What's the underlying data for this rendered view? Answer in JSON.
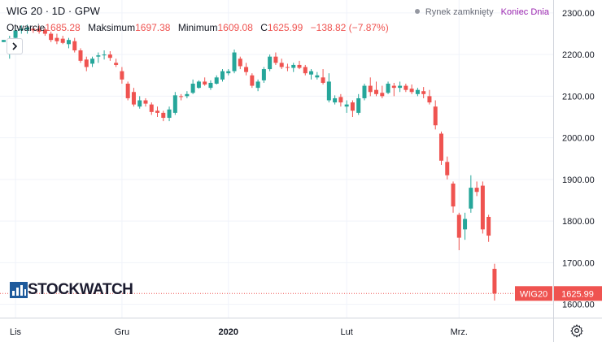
{
  "header": {
    "symbol": "WIG 20",
    "interval": "1D",
    "exchange": "GPW",
    "open_label": "Otwarcie",
    "open_value": "1685.28",
    "high_label": "Maksimum",
    "high_value": "1697.38",
    "low_label": "Minimum",
    "low_value": "1609.08",
    "close_label": "C",
    "close_value": "1625.99",
    "change_value": "−138.82 (−7.87%)"
  },
  "market_status": {
    "status_text": "Rynek zamknięty",
    "session_text": "Koniec Dnia"
  },
  "watermark": {
    "text": "STOCKWATCH"
  },
  "price_tag": {
    "symbol": "WIG20",
    "value": "1625.99"
  },
  "colors": {
    "up": "#26a69a",
    "down": "#ef5350",
    "grid": "#f0f3fa",
    "session_link": "#9c27b0"
  },
  "icons": {
    "expand": "chevron-right-icon",
    "settings": "gear-icon",
    "status": "dot-icon"
  },
  "chart_data": {
    "type": "candlestick",
    "y_axis": {
      "ticks": [
        1600,
        1700,
        1800,
        1900,
        2000,
        2100,
        2200,
        2300
      ],
      "labels": [
        "1600.00",
        "1700.00",
        "1800.00",
        "1900.00",
        "2000.00",
        "2100.00",
        "2200.00",
        "2300.00"
      ],
      "range": [
        1568,
        2331
      ],
      "grid": true
    },
    "x_axis": {
      "labels": [
        "Lis",
        "Gru",
        "2020",
        "Lut",
        "Mrz."
      ],
      "label_bar_index": [
        2,
        20,
        38,
        58,
        77
      ]
    },
    "last_price_line": 1625.99,
    "candles": [
      [
        2230,
        2235,
        2230,
        2235
      ],
      [
        2205,
        2245,
        2190,
        2238
      ],
      [
        2240,
        2265,
        2235,
        2258
      ],
      [
        2258,
        2270,
        2250,
        2262
      ],
      [
        2260,
        2272,
        2250,
        2265
      ],
      [
        2262,
        2268,
        2252,
        2258
      ],
      [
        2262,
        2270,
        2250,
        2255
      ],
      [
        2260,
        2265,
        2245,
        2250
      ],
      [
        2250,
        2255,
        2230,
        2235
      ],
      [
        2240,
        2250,
        2225,
        2232
      ],
      [
        2238,
        2245,
        2225,
        2228
      ],
      [
        2225,
        2240,
        2215,
        2235
      ],
      [
        2232,
        2240,
        2205,
        2210
      ],
      [
        2210,
        2215,
        2180,
        2185
      ],
      [
        2188,
        2195,
        2160,
        2170
      ],
      [
        2178,
        2195,
        2170,
        2190
      ],
      [
        2195,
        2205,
        2180,
        2198
      ],
      [
        2198,
        2210,
        2188,
        2200
      ],
      [
        2200,
        2208,
        2185,
        2192
      ],
      [
        2180,
        2190,
        2170,
        2175
      ],
      [
        2160,
        2170,
        2130,
        2140
      ],
      [
        2130,
        2135,
        2090,
        2095
      ],
      [
        2110,
        2120,
        2075,
        2080
      ],
      [
        2075,
        2100,
        2070,
        2090
      ],
      [
        2090,
        2095,
        2075,
        2082
      ],
      [
        2080,
        2085,
        2055,
        2062
      ],
      [
        2065,
        2075,
        2050,
        2060
      ],
      [
        2060,
        2065,
        2040,
        2048
      ],
      [
        2048,
        2075,
        2040,
        2068
      ],
      [
        2060,
        2110,
        2055,
        2102
      ],
      [
        2100,
        2105,
        2090,
        2098
      ],
      [
        2100,
        2112,
        2095,
        2105
      ],
      [
        2108,
        2140,
        2105,
        2130
      ],
      [
        2120,
        2138,
        2118,
        2135
      ],
      [
        2135,
        2145,
        2125,
        2128
      ],
      [
        2120,
        2138,
        2115,
        2132
      ],
      [
        2130,
        2150,
        2128,
        2145
      ],
      [
        2140,
        2165,
        2135,
        2160
      ],
      [
        2155,
        2165,
        2150,
        2160
      ],
      [
        2160,
        2212,
        2155,
        2205
      ],
      [
        2190,
        2195,
        2165,
        2172
      ],
      [
        2170,
        2180,
        2150,
        2158
      ],
      [
        2150,
        2155,
        2120,
        2125
      ],
      [
        2120,
        2140,
        2112,
        2135
      ],
      [
        2138,
        2170,
        2132,
        2165
      ],
      [
        2165,
        2200,
        2160,
        2195
      ],
      [
        2195,
        2205,
        2175,
        2180
      ],
      [
        2180,
        2190,
        2165,
        2170
      ],
      [
        2170,
        2178,
        2160,
        2168
      ],
      [
        2168,
        2180,
        2158,
        2175
      ],
      [
        2175,
        2185,
        2165,
        2168
      ],
      [
        2170,
        2175,
        2150,
        2155
      ],
      [
        2152,
        2165,
        2140,
        2160
      ],
      [
        2145,
        2158,
        2140,
        2150
      ],
      [
        2145,
        2165,
        2128,
        2132
      ],
      [
        2090,
        2155,
        2085,
        2135
      ],
      [
        2085,
        2102,
        2080,
        2095
      ],
      [
        2098,
        2105,
        2075,
        2085
      ],
      [
        2075,
        2090,
        2060,
        2080
      ],
      [
        2085,
        2090,
        2050,
        2065
      ],
      [
        2060,
        2105,
        2055,
        2095
      ],
      [
        2095,
        2130,
        2090,
        2125
      ],
      [
        2125,
        2145,
        2100,
        2110
      ],
      [
        2115,
        2135,
        2100,
        2105
      ],
      [
        2108,
        2125,
        2095,
        2100
      ],
      [
        2108,
        2135,
        2105,
        2130
      ],
      [
        2125,
        2132,
        2100,
        2120
      ],
      [
        2120,
        2135,
        2110,
        2125
      ],
      [
        2125,
        2130,
        2110,
        2115
      ],
      [
        2118,
        2128,
        2105,
        2110
      ],
      [
        2105,
        2120,
        2100,
        2115
      ],
      [
        2112,
        2122,
        2095,
        2105
      ],
      [
        2100,
        2115,
        2080,
        2085
      ],
      [
        2075,
        2090,
        2020,
        2030
      ],
      [
        2010,
        2015,
        1935,
        1945
      ],
      [
        1942,
        1955,
        1900,
        1910
      ],
      [
        1890,
        1895,
        1820,
        1835
      ],
      [
        1815,
        1820,
        1730,
        1760
      ],
      [
        1780,
        1820,
        1755,
        1805
      ],
      [
        1830,
        1910,
        1820,
        1880
      ],
      [
        1880,
        1895,
        1860,
        1870
      ],
      [
        1885,
        1895,
        1770,
        1780
      ],
      [
        1810,
        1815,
        1750,
        1765
      ],
      [
        1685.28,
        1697.38,
        1609.08,
        1625.99
      ]
    ],
    "candle_bar_index": [
      0,
      1,
      2,
      3,
      4,
      5,
      6,
      7,
      8,
      9,
      10,
      11,
      12,
      13,
      14,
      15,
      16,
      17,
      18,
      19,
      20,
      21,
      22,
      23,
      24,
      25,
      26,
      27,
      28,
      29,
      30,
      31,
      32,
      33,
      34,
      35,
      36,
      37,
      38,
      39,
      40,
      41,
      42,
      43,
      44,
      45,
      46,
      47,
      48,
      49,
      50,
      51,
      52,
      53,
      54,
      55,
      56,
      57,
      58,
      59,
      60,
      61,
      62,
      63,
      64,
      65,
      66,
      67,
      68,
      69,
      70,
      71,
      72,
      73,
      74,
      75,
      76,
      77,
      78,
      79,
      80,
      81,
      82,
      83
    ]
  }
}
